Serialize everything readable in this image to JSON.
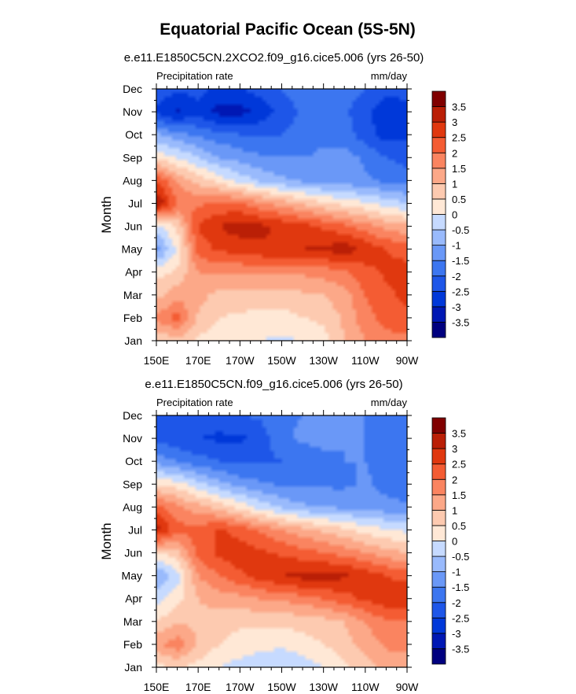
{
  "figure_title": "Equatorial Pacific Ocean (5S-5N)",
  "chart_data": [
    {
      "type": "heatmap",
      "title": "e.e11.E1850C5CN.2XCO2.f09_g16.cice5.006 (yrs 26-50)",
      "left_label": "Precipitation rate",
      "right_label": "mm/day",
      "ylabel": "Month",
      "x_ticks": [
        "150E",
        "170E",
        "170W",
        "150W",
        "130W",
        "110W",
        "90W"
      ],
      "y_ticks": [
        "Jan",
        "Feb",
        "Mar",
        "Apr",
        "May",
        "Jun",
        "Jul",
        "Aug",
        "Sep",
        "Oct",
        "Nov",
        "Dec"
      ],
      "x_range_lon_east": [
        150,
        270
      ],
      "colorbar_labels": [
        "-3.5",
        "-3",
        "-2.5",
        "-2",
        "-1.5",
        "-1",
        "-0.5",
        "0",
        "0.5",
        "1",
        "1.5",
        "2",
        "2.5",
        "3",
        "3.5"
      ],
      "columns_lon_east": [
        150,
        160,
        170,
        180,
        190,
        200,
        210,
        220,
        230,
        240,
        250,
        260,
        270
      ],
      "grid_rows_jan_to_dec": [
        [
          0.6,
          0.8,
          0.4,
          0.2,
          0.2,
          0.0,
          -0.1,
          0.0,
          0.3,
          1.0,
          1.5,
          1.8,
          1.8
        ],
        [
          1.6,
          2.2,
          0.9,
          0.5,
          0.4,
          0.3,
          0.3,
          0.5,
          0.6,
          1.1,
          1.8,
          2.2,
          2.4
        ],
        [
          0.8,
          1.3,
          1.2,
          0.8,
          0.8,
          0.8,
          0.8,
          0.9,
          1.0,
          1.3,
          2.0,
          2.4,
          2.6
        ],
        [
          0.3,
          0.6,
          1.5,
          1.6,
          1.6,
          1.6,
          1.6,
          1.6,
          1.7,
          1.9,
          2.3,
          2.6,
          2.7
        ],
        [
          -1.3,
          0.1,
          2.2,
          2.6,
          2.7,
          2.9,
          3.0,
          3.0,
          3.1,
          3.3,
          2.9,
          2.5,
          2.3
        ],
        [
          -0.2,
          0.6,
          2.6,
          3.0,
          3.3,
          3.1,
          2.9,
          2.7,
          2.4,
          2.1,
          1.7,
          1.3,
          1.1
        ],
        [
          3.6,
          2.0,
          1.9,
          2.1,
          2.0,
          1.6,
          1.3,
          0.9,
          0.6,
          0.3,
          0.1,
          -0.2,
          -0.5
        ],
        [
          2.5,
          1.4,
          0.8,
          0.3,
          -0.2,
          -0.6,
          -0.9,
          -1.1,
          -1.2,
          -1.3,
          -1.4,
          -1.6,
          -1.7
        ],
        [
          0.4,
          0.0,
          -0.5,
          -1.0,
          -1.2,
          -1.4,
          -1.5,
          -1.5,
          -1.4,
          -1.3,
          -1.6,
          -2.0,
          -2.2
        ],
        [
          -0.9,
          -1.3,
          -1.6,
          -1.8,
          -2.0,
          -2.1,
          -2.0,
          -1.8,
          -1.6,
          -1.7,
          -2.3,
          -2.7,
          -2.6
        ],
        [
          -2.6,
          -3.1,
          -2.7,
          -3.2,
          -3.2,
          -2.8,
          -2.3,
          -1.9,
          -1.8,
          -1.9,
          -2.4,
          -2.8,
          -2.8
        ],
        [
          -2.2,
          -2.4,
          -2.3,
          -2.6,
          -2.5,
          -2.3,
          -2.0,
          -1.7,
          -1.6,
          -1.7,
          -2.0,
          -2.4,
          -2.2
        ]
      ]
    },
    {
      "type": "heatmap",
      "title": "e.e11.E1850C5CN.f09_g16.cice5.006 (yrs 26-50)",
      "left_label": "Precipitation rate",
      "right_label": "mm/day",
      "ylabel": "Month",
      "x_ticks": [
        "150E",
        "170E",
        "170W",
        "150W",
        "130W",
        "110W",
        "90W"
      ],
      "y_ticks": [
        "Jan",
        "Feb",
        "Mar",
        "Apr",
        "May",
        "Jun",
        "Jul",
        "Aug",
        "Sep",
        "Oct",
        "Nov",
        "Dec"
      ],
      "x_range_lon_east": [
        150,
        270
      ],
      "colorbar_labels": [
        "-3.5",
        "-3",
        "-2.5",
        "-2",
        "-1.5",
        "-1",
        "-0.5",
        "0",
        "0.5",
        "1",
        "1.5",
        "2",
        "2.5",
        "3",
        "3.5"
      ],
      "columns_lon_east": [
        150,
        160,
        170,
        180,
        190,
        200,
        210,
        220,
        230,
        240,
        250,
        260,
        270
      ],
      "grid_rows_jan_to_dec": [
        [
          0.3,
          0.6,
          0.3,
          0.0,
          -0.2,
          -0.4,
          -0.5,
          -0.3,
          0.0,
          0.4,
          0.8,
          1.1,
          1.2
        ],
        [
          1.4,
          1.8,
          0.9,
          0.5,
          0.3,
          0.2,
          0.1,
          0.3,
          0.5,
          0.8,
          1.2,
          1.6,
          1.7
        ],
        [
          0.5,
          0.9,
          0.9,
          0.7,
          0.6,
          0.6,
          0.6,
          0.7,
          0.8,
          1.0,
          1.5,
          1.9,
          2.0
        ],
        [
          -0.2,
          0.3,
          1.0,
          1.2,
          1.3,
          1.5,
          1.6,
          1.8,
          2.0,
          2.3,
          2.6,
          2.9,
          3.0
        ],
        [
          -1.1,
          -0.2,
          1.5,
          2.0,
          2.4,
          2.8,
          3.0,
          3.2,
          3.2,
          3.1,
          2.8,
          2.5,
          2.3
        ],
        [
          0.4,
          0.8,
          2.2,
          2.6,
          2.8,
          2.6,
          2.4,
          2.2,
          2.0,
          1.8,
          1.5,
          1.2,
          1.0
        ],
        [
          3.2,
          2.2,
          2.2,
          2.6,
          2.3,
          1.9,
          1.5,
          1.2,
          0.9,
          0.6,
          0.3,
          0.1,
          -0.1
        ],
        [
          2.2,
          1.6,
          1.2,
          0.8,
          0.3,
          -0.2,
          -0.6,
          -0.9,
          -1.0,
          -1.1,
          -1.2,
          -1.3,
          -1.4
        ],
        [
          0.5,
          0.2,
          -0.3,
          -0.8,
          -1.2,
          -1.4,
          -1.6,
          -1.6,
          -1.6,
          -1.6,
          -1.4,
          -1.7,
          -1.9
        ],
        [
          -1.2,
          -1.5,
          -1.8,
          -2.0,
          -2.1,
          -2.1,
          -2.0,
          -1.8,
          -1.6,
          -1.5,
          -1.5,
          -1.8,
          -2.0
        ],
        [
          -2.1,
          -2.4,
          -2.5,
          -2.6,
          -2.6,
          -2.3,
          -1.6,
          -1.4,
          -1.4,
          -1.5,
          -1.5,
          -1.7,
          -1.9
        ],
        [
          -2.0,
          -2.3,
          -2.2,
          -2.2,
          -2.0,
          -1.9,
          -1.6,
          -1.5,
          -1.5,
          -1.5,
          -1.5,
          -1.7,
          -1.8
        ]
      ]
    }
  ]
}
